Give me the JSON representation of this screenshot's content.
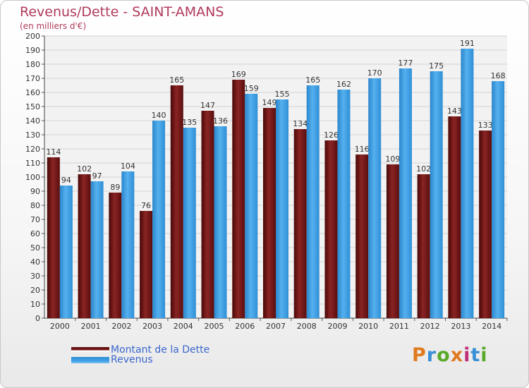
{
  "chart_data": {
    "type": "bar",
    "title": "Revenus/Dette - SAINT-AMANS",
    "subtitle": "(en milliers d'€)",
    "categories": [
      "2000",
      "2001",
      "2002",
      "2003",
      "2004",
      "2005",
      "2006",
      "2007",
      "2008",
      "2009",
      "2010",
      "2011",
      "2012",
      "2013",
      "2014"
    ],
    "series": [
      {
        "name": "Montant de la Dette",
        "values": [
          114,
          102,
          89,
          76,
          165,
          147,
          169,
          149,
          134,
          126,
          116,
          109,
          102,
          143,
          133
        ],
        "color": "#7a1a1a"
      },
      {
        "name": "Revenus",
        "values": [
          94,
          97,
          104,
          140,
          135,
          136,
          159,
          155,
          165,
          162,
          170,
          177,
          175,
          191,
          168
        ],
        "color": "#3fa0e6"
      }
    ],
    "ylim": [
      0,
      200
    ],
    "yticks": [
      0,
      10,
      20,
      30,
      40,
      50,
      60,
      70,
      80,
      90,
      100,
      110,
      120,
      130,
      140,
      150,
      160,
      170,
      180,
      190,
      200
    ],
    "grid": true,
    "legend_position": "bottom-left"
  },
  "branding": {
    "logo_text": "Proxiti",
    "logo_colors": [
      "#e07a1f",
      "#3a8fd6",
      "#5aaa2a",
      "#e07a1f",
      "#c0307a",
      "#3a8fd6",
      "#5aaa2a"
    ]
  }
}
